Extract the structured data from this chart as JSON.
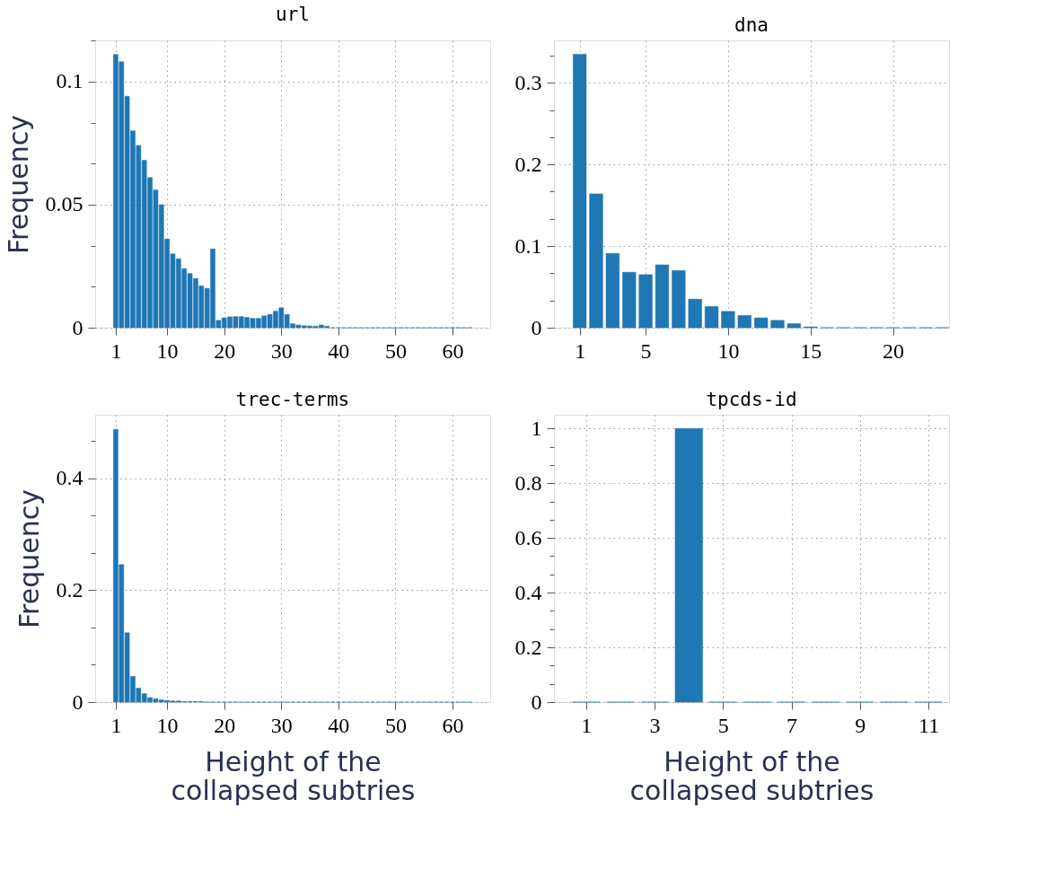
{
  "chart_data": [
    {
      "type": "bar",
      "title": "url",
      "ylabel": "Frequency",
      "x": [
        1,
        2,
        3,
        4,
        5,
        6,
        7,
        8,
        9,
        10,
        11,
        12,
        13,
        14,
        15,
        16,
        17,
        18,
        19,
        20,
        21,
        22,
        23,
        24,
        25,
        26,
        27,
        28,
        29,
        30,
        31,
        32,
        33,
        34,
        35,
        36,
        37,
        38,
        39,
        40,
        41,
        42,
        43,
        44,
        45,
        46,
        47,
        48,
        49,
        50,
        51,
        52,
        53,
        54,
        55,
        56,
        57,
        58,
        59,
        60,
        61,
        62,
        63
      ],
      "series": [
        {
          "color": "#1f77b4",
          "values": [
            0.111,
            0.108,
            0.094,
            0.08,
            0.074,
            0.068,
            0.061,
            0.056,
            0.05,
            0.036,
            0.03,
            0.028,
            0.024,
            0.022,
            0.02,
            0.017,
            0.016,
            0.032,
            0.003,
            0.004,
            0.0044,
            0.0045,
            0.0045,
            0.0042,
            0.0038,
            0.0038,
            0.0048,
            0.0054,
            0.0067,
            0.0081,
            0.0054,
            0.0016,
            0.0011,
            0.0008,
            0.0007,
            0.0006,
            0.0011,
            0.0006,
            0,
            0,
            0,
            0,
            0,
            0,
            0,
            0,
            0,
            0,
            0,
            0,
            0,
            0,
            0,
            0,
            0,
            0,
            0,
            0,
            0,
            0,
            0,
            0,
            0
          ]
        }
      ],
      "xlim": [
        -2.6,
        66.6
      ],
      "xticks": [
        1,
        10,
        20,
        30,
        40,
        50,
        60
      ],
      "ylim": [
        0,
        0.1167
      ],
      "yticks": [
        0,
        {
          "value": 0.0167,
          "label": null
        },
        {
          "value": 0.0333,
          "label": null
        },
        0.05,
        {
          "value": 0.0667,
          "label": null
        },
        {
          "value": 0.0833,
          "label": null
        },
        0.1,
        {
          "value": 0.1167,
          "label": null
        }
      ],
      "grid": true
    },
    {
      "type": "bar",
      "title": "dna",
      "x": [
        1,
        2,
        3,
        4,
        5,
        6,
        7,
        8,
        9,
        10,
        11,
        12,
        13,
        14,
        15,
        16,
        17,
        18,
        19,
        20,
        21,
        22,
        23
      ],
      "series": [
        {
          "color": "#1f77b4",
          "values": [
            0.335,
            0.164,
            0.091,
            0.068,
            0.065,
            0.077,
            0.07,
            0.035,
            0.026,
            0.02,
            0.015,
            0.012,
            0.009,
            0.005,
            0.001,
            0,
            0,
            0,
            0,
            0,
            0,
            0,
            0
          ]
        }
      ],
      "xlim": [
        -0.56,
        23.4
      ],
      "xticks": [
        1,
        5,
        10,
        15,
        20
      ],
      "ylim": [
        0,
        0.352
      ],
      "yticks": [
        0,
        {
          "value": 0.0333,
          "label": null
        },
        {
          "value": 0.0667,
          "label": null
        },
        0.1,
        {
          "value": 0.1333,
          "label": null
        },
        {
          "value": 0.1667,
          "label": null
        },
        0.2,
        {
          "value": 0.2333,
          "label": null
        },
        {
          "value": 0.2667,
          "label": null
        },
        0.3,
        {
          "value": 0.3333,
          "label": null
        }
      ],
      "grid": true
    },
    {
      "type": "bar",
      "title": "trec-terms",
      "ylabel": "Frequency",
      "xlabel": "Height of the\ncollapsed subtries",
      "x": [
        1,
        2,
        3,
        4,
        5,
        6,
        7,
        8,
        9,
        10,
        11,
        12,
        13,
        14,
        15,
        16,
        17,
        18,
        19,
        20,
        21,
        22,
        23,
        24,
        25,
        26,
        27,
        28,
        29,
        30,
        31,
        32,
        33,
        34,
        35,
        36,
        37,
        38,
        39,
        40,
        41,
        42,
        43,
        44,
        45,
        46,
        47,
        48,
        49,
        50,
        51,
        52,
        53,
        54,
        55,
        56,
        57,
        58,
        59,
        60,
        61,
        62,
        63
      ],
      "series": [
        {
          "color": "#1f77b4",
          "values": [
            0.488,
            0.246,
            0.124,
            0.046,
            0.025,
            0.015,
            0.008,
            0.006,
            0.004,
            0.003,
            0.002,
            0.002,
            0.001,
            0.001,
            0.001,
            0.001,
            0,
            0,
            0,
            0,
            0,
            0,
            0,
            0,
            0,
            0,
            0,
            0,
            0,
            0,
            0,
            0,
            0,
            0,
            0,
            0,
            0,
            0,
            0,
            0,
            0,
            0,
            0,
            0,
            0,
            0,
            0,
            0,
            0,
            0,
            0,
            0,
            0,
            0,
            0,
            0,
            0,
            0,
            0,
            0,
            0,
            0,
            0
          ]
        }
      ],
      "xlim": [
        -2.6,
        66.6
      ],
      "xticks": [
        1,
        10,
        20,
        30,
        40,
        50,
        60
      ],
      "ylim": [
        0,
        0.514
      ],
      "yticks": [
        0,
        {
          "value": 0.0667,
          "label": null
        },
        {
          "value": 0.1333,
          "label": null
        },
        0.2,
        {
          "value": 0.2667,
          "label": null
        },
        {
          "value": 0.3333,
          "label": null
        },
        0.4,
        {
          "value": 0.4667,
          "label": null
        }
      ],
      "grid": true
    },
    {
      "type": "bar",
      "title": "tpcds-id",
      "xlabel": "Height of the\ncollapsed subtries",
      "x": [
        1,
        2,
        3,
        4,
        5,
        6,
        7,
        8,
        9,
        10,
        11
      ],
      "series": [
        {
          "color": "#1f77b4",
          "values": [
            0,
            0,
            0,
            1,
            0,
            0,
            0,
            0,
            0,
            0,
            0
          ]
        }
      ],
      "xlim": [
        0.06,
        11.6
      ],
      "xticks": [
        1,
        3,
        5,
        7,
        9,
        11
      ],
      "ylim": [
        0,
        1.05
      ],
      "yticks": [
        0,
        {
          "value": 0.0667,
          "label": null
        },
        {
          "value": 0.1333,
          "label": null
        },
        0.2,
        {
          "value": 0.2667,
          "label": null
        },
        {
          "value": 0.3333,
          "label": null
        },
        0.4,
        {
          "value": 0.4667,
          "label": null
        },
        {
          "value": 0.5333,
          "label": null
        },
        0.6,
        {
          "value": 0.6667,
          "label": null
        },
        {
          "value": 0.7333,
          "label": null
        },
        0.8,
        {
          "value": 0.8667,
          "label": null
        },
        {
          "value": 0.9333,
          "label": null
        },
        1
      ],
      "grid": true
    }
  ]
}
